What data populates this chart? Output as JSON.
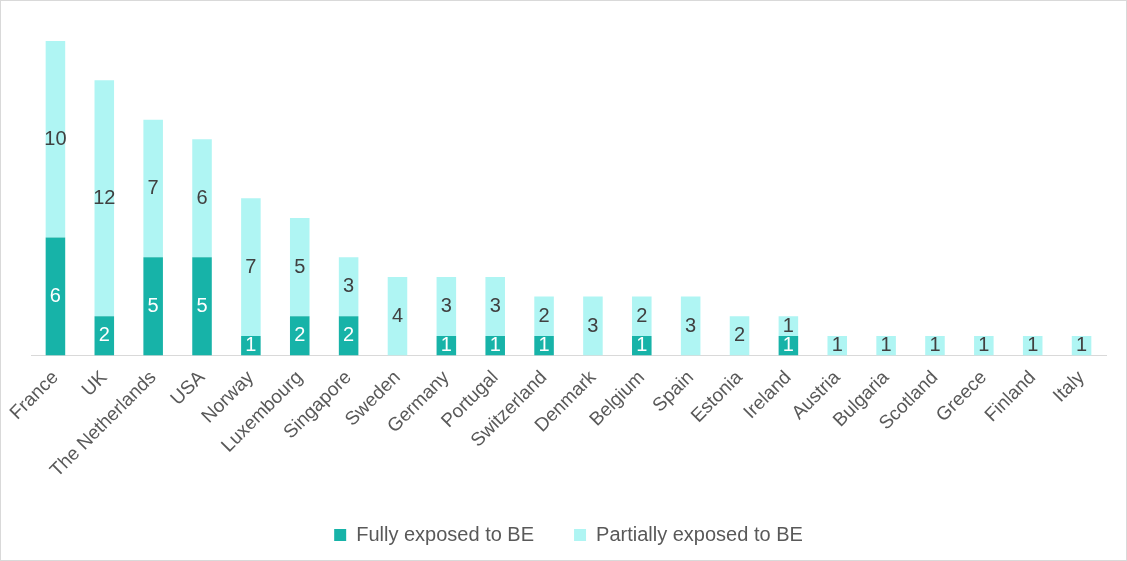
{
  "chart_data": {
    "type": "bar",
    "stacked": true,
    "data_labels": true,
    "legend": "bottom",
    "grid": false,
    "categories": [
      "France",
      "UK",
      "The Netherlands",
      "USA",
      "Norway",
      "Luxembourg",
      "Singapore",
      "Sweden",
      "Germany",
      "Portugal",
      "Switzerland",
      "Denmark",
      "Belgium",
      "Spain",
      "Estonia",
      "Ireland",
      "Austria",
      "Bulgaria",
      "Scotland",
      "Greece",
      "Finland",
      "Italy"
    ],
    "series": [
      {
        "name": "Fully exposed to BE",
        "color": "#17b3a8",
        "values": [
          6,
          2,
          5,
          5,
          1,
          2,
          2,
          null,
          1,
          1,
          1,
          null,
          1,
          null,
          null,
          1,
          null,
          null,
          null,
          null,
          null,
          null
        ]
      },
      {
        "name": "Partially exposed to BE",
        "color": "#aff5f3",
        "values": [
          10,
          12,
          7,
          6,
          7,
          5,
          3,
          4,
          3,
          3,
          2,
          3,
          2,
          3,
          2,
          1,
          1,
          1,
          1,
          1,
          1,
          1
        ]
      }
    ]
  }
}
